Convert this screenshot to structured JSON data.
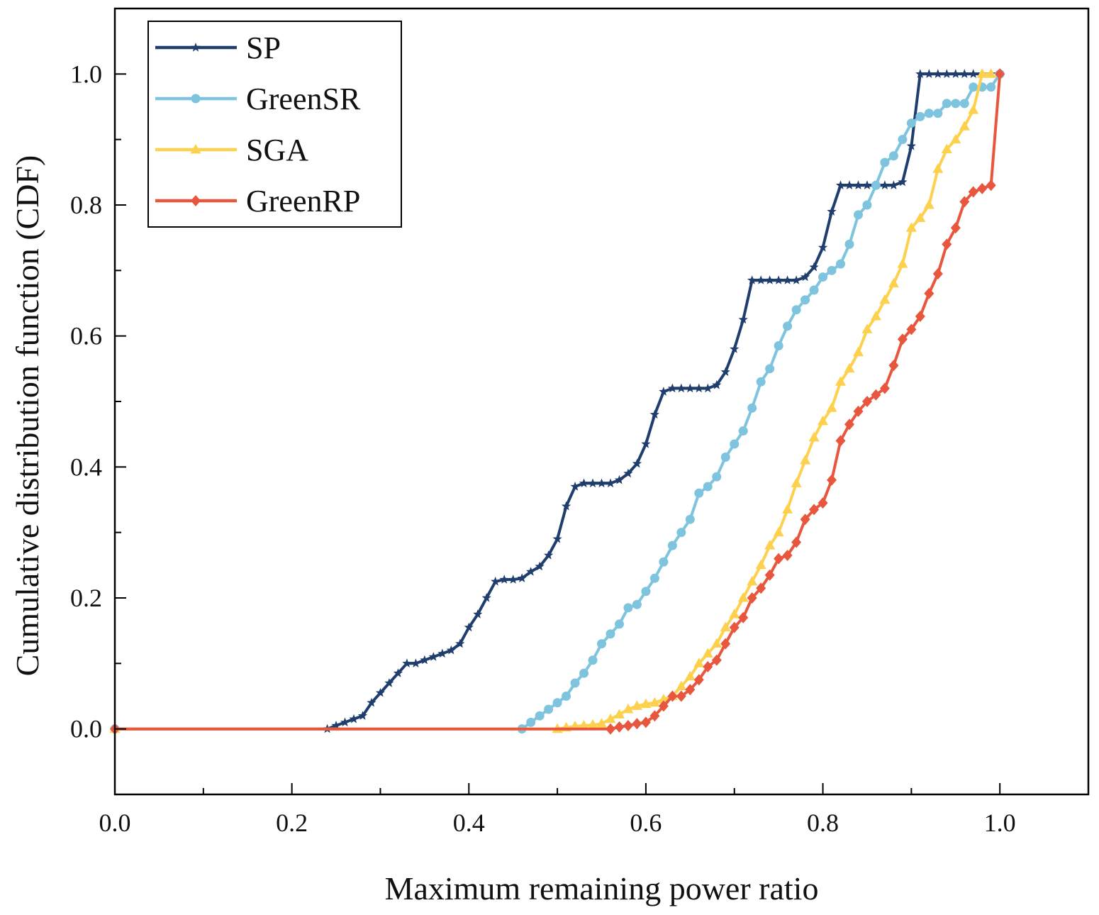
{
  "chart_data": {
    "type": "line",
    "title": "",
    "xlabel": "Maximum remaining power ratio",
    "ylabel": "Cumulative distribution function (CDF)",
    "xlim": [
      0.0,
      1.1
    ],
    "ylim": [
      -0.1,
      1.1
    ],
    "x_ticks": [
      0.0,
      0.2,
      0.4,
      0.6,
      0.8,
      1.0
    ],
    "x_tick_labels": [
      "0.0",
      "0.2",
      "0.4",
      "0.6",
      "0.8",
      "1.0"
    ],
    "y_ticks": [
      0.0,
      0.2,
      0.4,
      0.6,
      0.8,
      1.0
    ],
    "y_tick_labels": [
      "0.0",
      "0.2",
      "0.4",
      "0.6",
      "0.8",
      "1.0"
    ],
    "grid": false,
    "legend_position": "top-left",
    "series": [
      {
        "name": "SP",
        "color": "#1f3e6e",
        "marker": "star",
        "points": [
          [
            0,
            0
          ],
          [
            0.24,
            0
          ],
          [
            0.25,
            0.005
          ],
          [
            0.26,
            0.01
          ],
          [
            0.27,
            0.015
          ],
          [
            0.28,
            0.02
          ],
          [
            0.29,
            0.04
          ],
          [
            0.3,
            0.055
          ],
          [
            0.31,
            0.07
          ],
          [
            0.32,
            0.085
          ],
          [
            0.33,
            0.1
          ],
          [
            0.34,
            0.1
          ],
          [
            0.35,
            0.105
          ],
          [
            0.36,
            0.11
          ],
          [
            0.37,
            0.115
          ],
          [
            0.38,
            0.12
          ],
          [
            0.39,
            0.13
          ],
          [
            0.4,
            0.155
          ],
          [
            0.41,
            0.175
          ],
          [
            0.42,
            0.2
          ],
          [
            0.43,
            0.225
          ],
          [
            0.44,
            0.228
          ],
          [
            0.45,
            0.228
          ],
          [
            0.46,
            0.23
          ],
          [
            0.47,
            0.24
          ],
          [
            0.48,
            0.248
          ],
          [
            0.49,
            0.265
          ],
          [
            0.5,
            0.29
          ],
          [
            0.51,
            0.34
          ],
          [
            0.52,
            0.37
          ],
          [
            0.53,
            0.375
          ],
          [
            0.54,
            0.375
          ],
          [
            0.55,
            0.375
          ],
          [
            0.56,
            0.375
          ],
          [
            0.57,
            0.38
          ],
          [
            0.58,
            0.39
          ],
          [
            0.59,
            0.405
          ],
          [
            0.6,
            0.435
          ],
          [
            0.61,
            0.48
          ],
          [
            0.62,
            0.515
          ],
          [
            0.63,
            0.52
          ],
          [
            0.64,
            0.52
          ],
          [
            0.65,
            0.52
          ],
          [
            0.66,
            0.52
          ],
          [
            0.67,
            0.52
          ],
          [
            0.68,
            0.525
          ],
          [
            0.69,
            0.545
          ],
          [
            0.7,
            0.58
          ],
          [
            0.71,
            0.625
          ],
          [
            0.72,
            0.685
          ],
          [
            0.73,
            0.685
          ],
          [
            0.74,
            0.685
          ],
          [
            0.75,
            0.685
          ],
          [
            0.76,
            0.685
          ],
          [
            0.77,
            0.685
          ],
          [
            0.78,
            0.69
          ],
          [
            0.79,
            0.705
          ],
          [
            0.8,
            0.735
          ],
          [
            0.81,
            0.79
          ],
          [
            0.82,
            0.83
          ],
          [
            0.83,
            0.83
          ],
          [
            0.84,
            0.83
          ],
          [
            0.85,
            0.83
          ],
          [
            0.86,
            0.83
          ],
          [
            0.87,
            0.83
          ],
          [
            0.88,
            0.83
          ],
          [
            0.89,
            0.835
          ],
          [
            0.9,
            0.89
          ],
          [
            0.91,
            1.0
          ],
          [
            0.92,
            1.0
          ],
          [
            0.93,
            1.0
          ],
          [
            0.94,
            1.0
          ],
          [
            0.95,
            1.0
          ],
          [
            0.96,
            1.0
          ],
          [
            0.97,
            1.0
          ],
          [
            0.98,
            1.0
          ],
          [
            0.99,
            1.0
          ]
        ]
      },
      {
        "name": "GreenSR",
        "color": "#7ec4df",
        "marker": "circle",
        "points": [
          [
            0,
            0
          ],
          [
            0.46,
            0
          ],
          [
            0.47,
            0.01
          ],
          [
            0.48,
            0.02
          ],
          [
            0.49,
            0.03
          ],
          [
            0.5,
            0.04
          ],
          [
            0.51,
            0.05
          ],
          [
            0.52,
            0.07
          ],
          [
            0.53,
            0.085
          ],
          [
            0.54,
            0.105
          ],
          [
            0.55,
            0.13
          ],
          [
            0.56,
            0.145
          ],
          [
            0.57,
            0.16
          ],
          [
            0.58,
            0.185
          ],
          [
            0.59,
            0.19
          ],
          [
            0.6,
            0.21
          ],
          [
            0.61,
            0.23
          ],
          [
            0.62,
            0.255
          ],
          [
            0.63,
            0.28
          ],
          [
            0.64,
            0.3
          ],
          [
            0.65,
            0.32
          ],
          [
            0.66,
            0.36
          ],
          [
            0.67,
            0.37
          ],
          [
            0.68,
            0.385
          ],
          [
            0.69,
            0.415
          ],
          [
            0.7,
            0.435
          ],
          [
            0.71,
            0.455
          ],
          [
            0.72,
            0.49
          ],
          [
            0.73,
            0.53
          ],
          [
            0.74,
            0.55
          ],
          [
            0.75,
            0.585
          ],
          [
            0.76,
            0.615
          ],
          [
            0.77,
            0.64
          ],
          [
            0.78,
            0.655
          ],
          [
            0.79,
            0.67
          ],
          [
            0.8,
            0.69
          ],
          [
            0.81,
            0.7
          ],
          [
            0.82,
            0.71
          ],
          [
            0.83,
            0.74
          ],
          [
            0.84,
            0.785
          ],
          [
            0.85,
            0.8
          ],
          [
            0.86,
            0.83
          ],
          [
            0.87,
            0.865
          ],
          [
            0.88,
            0.875
          ],
          [
            0.89,
            0.9
          ],
          [
            0.9,
            0.925
          ],
          [
            0.91,
            0.935
          ],
          [
            0.92,
            0.94
          ],
          [
            0.93,
            0.94
          ],
          [
            0.94,
            0.955
          ],
          [
            0.95,
            0.955
          ],
          [
            0.96,
            0.955
          ],
          [
            0.97,
            0.98
          ],
          [
            0.98,
            0.98
          ],
          [
            0.99,
            0.98
          ],
          [
            1.0,
            1.0
          ]
        ]
      },
      {
        "name": "SGA",
        "color": "#fdd14d",
        "marker": "triangle",
        "points": [
          [
            0,
            0
          ],
          [
            0.5,
            0
          ],
          [
            0.51,
            0.002
          ],
          [
            0.52,
            0.004
          ],
          [
            0.53,
            0.005
          ],
          [
            0.54,
            0.006
          ],
          [
            0.55,
            0.008
          ],
          [
            0.56,
            0.015
          ],
          [
            0.57,
            0.022
          ],
          [
            0.58,
            0.03
          ],
          [
            0.59,
            0.035
          ],
          [
            0.6,
            0.038
          ],
          [
            0.61,
            0.04
          ],
          [
            0.62,
            0.045
          ],
          [
            0.63,
            0.05
          ],
          [
            0.64,
            0.065
          ],
          [
            0.65,
            0.08
          ],
          [
            0.66,
            0.1
          ],
          [
            0.67,
            0.115
          ],
          [
            0.68,
            0.13
          ],
          [
            0.69,
            0.155
          ],
          [
            0.7,
            0.175
          ],
          [
            0.71,
            0.2
          ],
          [
            0.72,
            0.225
          ],
          [
            0.73,
            0.25
          ],
          [
            0.74,
            0.28
          ],
          [
            0.75,
            0.3
          ],
          [
            0.76,
            0.335
          ],
          [
            0.77,
            0.375
          ],
          [
            0.78,
            0.41
          ],
          [
            0.79,
            0.445
          ],
          [
            0.8,
            0.47
          ],
          [
            0.81,
            0.49
          ],
          [
            0.82,
            0.53
          ],
          [
            0.83,
            0.55
          ],
          [
            0.84,
            0.575
          ],
          [
            0.85,
            0.61
          ],
          [
            0.86,
            0.63
          ],
          [
            0.87,
            0.655
          ],
          [
            0.88,
            0.68
          ],
          [
            0.89,
            0.71
          ],
          [
            0.9,
            0.765
          ],
          [
            0.91,
            0.78
          ],
          [
            0.92,
            0.8
          ],
          [
            0.93,
            0.855
          ],
          [
            0.94,
            0.885
          ],
          [
            0.95,
            0.9
          ],
          [
            0.96,
            0.92
          ],
          [
            0.97,
            0.945
          ],
          [
            0.98,
            1.0
          ],
          [
            0.99,
            1.0
          ]
        ]
      },
      {
        "name": "GreenRP",
        "color": "#e8563d",
        "marker": "diamond",
        "points": [
          [
            0,
            0
          ],
          [
            0.56,
            0
          ],
          [
            0.57,
            0.003
          ],
          [
            0.58,
            0.005
          ],
          [
            0.59,
            0.008
          ],
          [
            0.6,
            0.01
          ],
          [
            0.61,
            0.02
          ],
          [
            0.62,
            0.035
          ],
          [
            0.63,
            0.05
          ],
          [
            0.64,
            0.05
          ],
          [
            0.65,
            0.06
          ],
          [
            0.66,
            0.075
          ],
          [
            0.67,
            0.095
          ],
          [
            0.68,
            0.105
          ],
          [
            0.69,
            0.13
          ],
          [
            0.7,
            0.155
          ],
          [
            0.71,
            0.17
          ],
          [
            0.72,
            0.2
          ],
          [
            0.73,
            0.215
          ],
          [
            0.74,
            0.235
          ],
          [
            0.75,
            0.26
          ],
          [
            0.76,
            0.265
          ],
          [
            0.77,
            0.285
          ],
          [
            0.78,
            0.32
          ],
          [
            0.79,
            0.335
          ],
          [
            0.8,
            0.345
          ],
          [
            0.81,
            0.38
          ],
          [
            0.82,
            0.44
          ],
          [
            0.83,
            0.465
          ],
          [
            0.84,
            0.485
          ],
          [
            0.85,
            0.5
          ],
          [
            0.86,
            0.51
          ],
          [
            0.87,
            0.52
          ],
          [
            0.88,
            0.555
          ],
          [
            0.89,
            0.595
          ],
          [
            0.9,
            0.61
          ],
          [
            0.91,
            0.63
          ],
          [
            0.92,
            0.665
          ],
          [
            0.93,
            0.695
          ],
          [
            0.94,
            0.74
          ],
          [
            0.95,
            0.765
          ],
          [
            0.96,
            0.805
          ],
          [
            0.97,
            0.82
          ],
          [
            0.98,
            0.825
          ],
          [
            0.99,
            0.83
          ],
          [
            1.0,
            1.0
          ]
        ]
      }
    ]
  }
}
